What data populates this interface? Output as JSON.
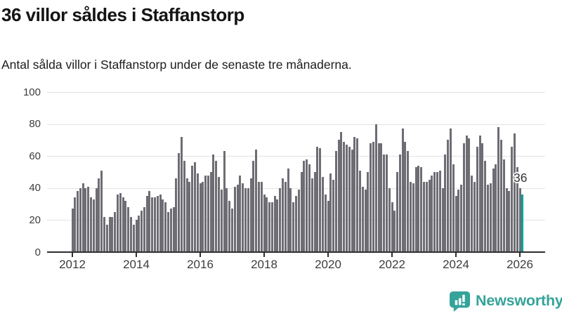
{
  "header": {
    "title": "36 villor såldes i Staffanstorp",
    "subtitle": "Antal sålda villor i Staffanstorp under de senaste tre månaderna."
  },
  "chart_data": {
    "type": "bar",
    "title": "36 villor såldes i Staffanstorp",
    "ylabel": "",
    "xlabel": "",
    "ylim": [
      0,
      100
    ],
    "yticks": [
      0,
      20,
      40,
      60,
      80,
      100
    ],
    "xticks": [
      2012,
      2014,
      2016,
      2018,
      2020,
      2022,
      2024,
      2026
    ],
    "grid": "horizontal",
    "x_start_month": "2012-01",
    "x_end_month": "2026-02",
    "series": [
      {
        "name": "Antal sålda villor under de senaste tre månaderna",
        "values": [
          27,
          34,
          38,
          40,
          43,
          40,
          41,
          34,
          33,
          40,
          46,
          51,
          22,
          17,
          22,
          22,
          25,
          36,
          37,
          34,
          32,
          28,
          22,
          17,
          20,
          23,
          26,
          28,
          35,
          38,
          34,
          34,
          35,
          36,
          33,
          31,
          25,
          27,
          28,
          46,
          62,
          72,
          57,
          46,
          44,
          54,
          56,
          49,
          43,
          44,
          48,
          48,
          50,
          61,
          57,
          47,
          39,
          63,
          40,
          32,
          27,
          41,
          42,
          48,
          43,
          40,
          40,
          46,
          57,
          64,
          44,
          44,
          36,
          34,
          31,
          31,
          35,
          33,
          40,
          46,
          44,
          52,
          40,
          31,
          35,
          39,
          50,
          57,
          58,
          55,
          46,
          50,
          66,
          65,
          47,
          36,
          32,
          49,
          45,
          63,
          70,
          75,
          69,
          67,
          66,
          64,
          72,
          71,
          51,
          41,
          39,
          50,
          68,
          69,
          80,
          68,
          68,
          61,
          61,
          40,
          31,
          26,
          50,
          61,
          77,
          69,
          63,
          44,
          43,
          53,
          54,
          53,
          44,
          44,
          45,
          48,
          50,
          50,
          51,
          40,
          61,
          70,
          77,
          55,
          35,
          39,
          42,
          68,
          73,
          71,
          48,
          44,
          66,
          73,
          68,
          57,
          42,
          43,
          52,
          55,
          78,
          70,
          58,
          40,
          38,
          66,
          74,
          53,
          40,
          36
        ]
      }
    ],
    "highlight": {
      "index_last": true,
      "value": 36,
      "label": "36"
    }
  },
  "annotation": {
    "last_value_label": "36"
  },
  "colors": {
    "bar": "#6e6d74",
    "bar_highlight": "#00a29c",
    "gridline": "#e2e2e2",
    "axis": "#2e2e2e",
    "text": "#141414",
    "tick_text": "#3d3d3d",
    "brand": "#35a39a"
  },
  "footer": {
    "brand": "Newsworthy"
  }
}
